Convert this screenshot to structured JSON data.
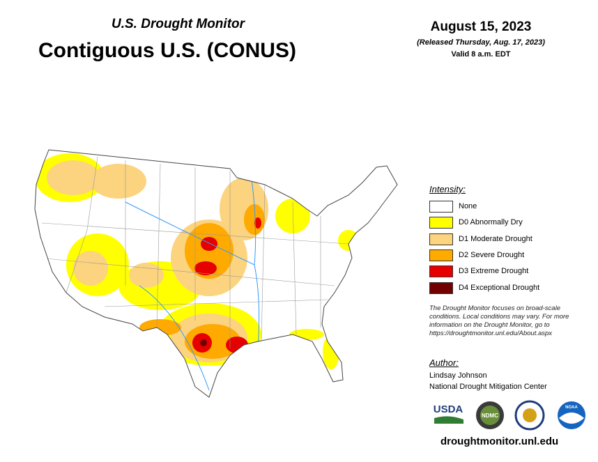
{
  "header": {
    "kicker": "U.S. Drought Monitor",
    "title": "Contiguous U.S. (CONUS)"
  },
  "date": {
    "main": "August 15, 2023",
    "released": "(Released Thursday, Aug. 17, 2023)",
    "valid": "Valid 8 a.m. EDT"
  },
  "legend": {
    "title": "Intensity:",
    "items": [
      {
        "label": "None",
        "color": "#ffffff"
      },
      {
        "label": "D0 Abnormally Dry",
        "color": "#ffff00"
      },
      {
        "label": "D1 Moderate Drought",
        "color": "#fcd37f"
      },
      {
        "label": "D2 Severe Drought",
        "color": "#ffaa00"
      },
      {
        "label": "D3 Extreme Drought",
        "color": "#e60000"
      },
      {
        "label": "D4 Exceptional Drought",
        "color": "#730000"
      }
    ]
  },
  "note": "The Drought Monitor focuses on broad-scale conditions. Local conditions may vary. For more information on the Drought Monitor, go to https://droughtmonitor.unl.edu/About.aspx",
  "author": {
    "title": "Author:",
    "name": "Lindsay Johnson",
    "org": "National Drought Mitigation Center"
  },
  "logos": [
    "USDA",
    "NDMC",
    "NOAA"
  ],
  "footer": "droughtmonitor.unl.edu"
}
